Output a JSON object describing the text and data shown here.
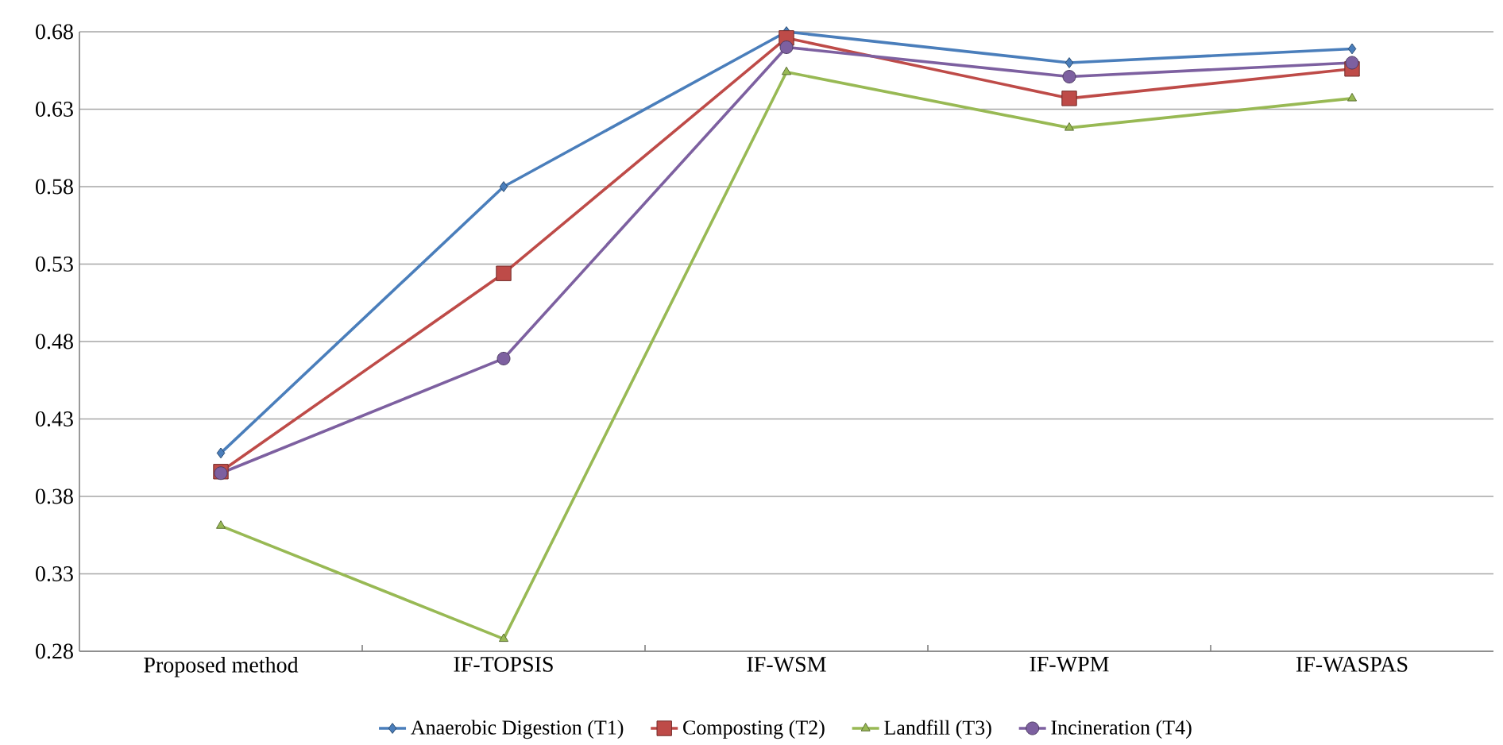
{
  "chart_data": {
    "type": "line",
    "categories": [
      "Proposed method",
      "IF-TOPSIS",
      "IF-WSM",
      "IF-WPM",
      "IF-WASPAS"
    ],
    "series": [
      {
        "name": "Anaerobic Digestion (T1)",
        "color": "#4a7ebb",
        "marker": "diamond",
        "values": [
          0.408,
          0.58,
          0.68,
          0.66,
          0.669
        ]
      },
      {
        "name": "Composting (T2)",
        "color": "#be4b48",
        "marker": "square",
        "values": [
          0.396,
          0.524,
          0.676,
          0.637,
          0.656
        ]
      },
      {
        "name": "Landfill (T3)",
        "color": "#98b954",
        "marker": "triangle",
        "values": [
          0.361,
          0.288,
          0.654,
          0.618,
          0.637
        ]
      },
      {
        "name": "Incineration (T4)",
        "color": "#7d60a0",
        "marker": "circle",
        "values": [
          0.395,
          0.469,
          0.67,
          0.651,
          0.66
        ]
      }
    ],
    "ylim": [
      0.28,
      0.68
    ],
    "yticks": [
      0.28,
      0.33,
      0.38,
      0.43,
      0.48,
      0.53,
      0.58,
      0.63,
      0.68
    ],
    "grid": "y",
    "legend": "bottom",
    "line_style": "solid"
  }
}
